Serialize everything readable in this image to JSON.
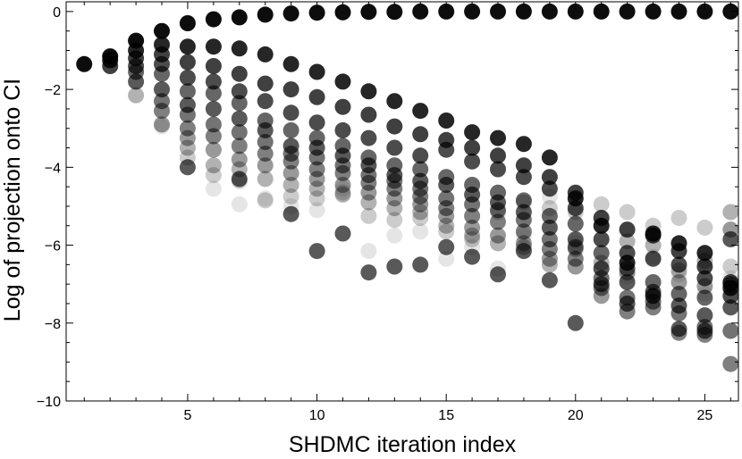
{
  "chart_data": {
    "type": "scatter",
    "title": "",
    "xlabel": "SHDMC iteration index",
    "ylabel": "Log of projection onto CI",
    "xlim": [
      0.3,
      26.3
    ],
    "ylim": [
      -10,
      0.25
    ],
    "x_ticks": [
      5,
      10,
      15,
      20,
      25
    ],
    "x_tick_labels": [
      "5",
      "10",
      "15",
      "20",
      "25"
    ],
    "y_ticks": [
      0,
      -2,
      -4,
      -6,
      -8,
      -10
    ],
    "y_tick_labels": [
      "0",
      "−2",
      "−4",
      "−6",
      "−8",
      "−10"
    ],
    "grid": false,
    "legend": "none",
    "marker_color": "#000000",
    "series": [
      {
        "name": "",
        "opacity": 0.95,
        "points": [
          [
            1,
            -1.35
          ],
          [
            2,
            -1.15
          ],
          [
            3,
            -0.75
          ],
          [
            4,
            -0.5
          ],
          [
            5,
            -0.3
          ],
          [
            6,
            -0.2
          ],
          [
            7,
            -0.15
          ],
          [
            8,
            -0.08
          ],
          [
            9,
            -0.05
          ],
          [
            10,
            -0.03
          ],
          [
            11,
            -0.02
          ],
          [
            12,
            -0.01
          ],
          [
            13,
            -0.01
          ],
          [
            14,
            0
          ],
          [
            15,
            0
          ],
          [
            16,
            0
          ],
          [
            17,
            0
          ],
          [
            18,
            0
          ],
          [
            19,
            0
          ],
          [
            20,
            0
          ],
          [
            21,
            0
          ],
          [
            22,
            0
          ],
          [
            23,
            0
          ],
          [
            24,
            0
          ],
          [
            25,
            0
          ],
          [
            26,
            0
          ]
        ]
      },
      {
        "name": "",
        "opacity": 0.85,
        "points": [
          [
            2,
            -1.25
          ],
          [
            3,
            -1.0
          ],
          [
            4,
            -0.85
          ],
          [
            5,
            -0.9
          ],
          [
            6,
            -0.9
          ],
          [
            7,
            -0.95
          ],
          [
            8,
            -1.1
          ],
          [
            9,
            -1.35
          ],
          [
            10,
            -1.55
          ],
          [
            11,
            -1.8
          ],
          [
            12,
            -2.05
          ],
          [
            13,
            -2.3
          ],
          [
            14,
            -2.55
          ],
          [
            15,
            -2.8
          ],
          [
            16,
            -3.1
          ],
          [
            17,
            -3.25
          ],
          [
            18,
            -3.4
          ],
          [
            19,
            -3.75
          ],
          [
            20,
            -4.8
          ],
          [
            21,
            -5.5
          ],
          [
            22,
            -6.45
          ],
          [
            23,
            -5.7
          ],
          [
            24,
            -5.95
          ],
          [
            25,
            -6.2
          ],
          [
            26,
            -7.1
          ]
        ]
      },
      {
        "name": "",
        "opacity": 0.75,
        "points": [
          [
            2,
            -1.4
          ],
          [
            3,
            -1.2
          ],
          [
            4,
            -1.1
          ],
          [
            5,
            -1.3
          ],
          [
            6,
            -1.4
          ],
          [
            7,
            -1.6
          ],
          [
            8,
            -1.85
          ],
          [
            9,
            -2.0
          ],
          [
            10,
            -2.2
          ],
          [
            11,
            -2.45
          ],
          [
            12,
            -2.65
          ],
          [
            13,
            -2.95
          ],
          [
            14,
            -3.15
          ],
          [
            15,
            -3.3
          ],
          [
            16,
            -3.5
          ],
          [
            17,
            -3.7
          ],
          [
            18,
            -3.95
          ],
          [
            19,
            -4.25
          ],
          [
            20,
            -4.65
          ],
          [
            21,
            -5.3
          ],
          [
            22,
            -5.6
          ],
          [
            23,
            -5.75
          ],
          [
            24,
            -6.15
          ],
          [
            25,
            -6.55
          ],
          [
            26,
            -6.95
          ]
        ]
      },
      {
        "name": "",
        "opacity": 0.7,
        "points": [
          [
            3,
            -1.4
          ],
          [
            4,
            -1.35
          ],
          [
            5,
            -1.7
          ],
          [
            6,
            -1.8
          ],
          [
            7,
            -2.05
          ],
          [
            8,
            -2.3
          ],
          [
            9,
            -2.6
          ],
          [
            10,
            -2.85
          ],
          [
            11,
            -3.05
          ],
          [
            12,
            -3.25
          ],
          [
            13,
            -3.5
          ],
          [
            14,
            -3.7
          ],
          [
            15,
            -3.55
          ],
          [
            16,
            -3.85
          ],
          [
            17,
            -4.05
          ],
          [
            18,
            -4.25
          ],
          [
            19,
            -4.55
          ],
          [
            20,
            -5.05
          ],
          [
            21,
            -5.85
          ],
          [
            22,
            -6.2
          ],
          [
            23,
            -6.35
          ],
          [
            24,
            -6.5
          ],
          [
            25,
            -6.85
          ],
          [
            26,
            -7.3
          ]
        ]
      },
      {
        "name": "",
        "opacity": 0.6,
        "points": [
          [
            3,
            -1.55
          ],
          [
            4,
            -1.6
          ],
          [
            5,
            -2.05
          ],
          [
            6,
            -2.1
          ],
          [
            7,
            -2.35
          ],
          [
            8,
            -2.8
          ],
          [
            9,
            -3.05
          ],
          [
            10,
            -3.25
          ],
          [
            11,
            -3.45
          ],
          [
            12,
            -3.75
          ],
          [
            13,
            -3.95
          ],
          [
            14,
            -4.05
          ],
          [
            15,
            -4.25
          ],
          [
            16,
            -4.45
          ],
          [
            17,
            -4.65
          ],
          [
            18,
            -4.85
          ],
          [
            19,
            -5.25
          ],
          [
            20,
            -5.45
          ],
          [
            21,
            -6.2
          ],
          [
            22,
            -6.6
          ],
          [
            23,
            -6.95
          ],
          [
            24,
            -7.25
          ],
          [
            25,
            -7.35
          ],
          [
            26,
            -7.0
          ]
        ]
      },
      {
        "name": "",
        "opacity": 0.65,
        "points": [
          [
            3,
            -1.8
          ],
          [
            4,
            -2.0
          ],
          [
            5,
            -2.4
          ],
          [
            6,
            -2.5
          ],
          [
            7,
            -2.75
          ],
          [
            8,
            -3.05
          ],
          [
            9,
            -3.45
          ],
          [
            10,
            -3.5
          ],
          [
            11,
            -3.7
          ],
          [
            12,
            -3.95
          ],
          [
            13,
            -4.2
          ],
          [
            14,
            -4.35
          ],
          [
            15,
            -4.45
          ],
          [
            16,
            -4.7
          ],
          [
            17,
            -4.9
          ],
          [
            18,
            -5.15
          ],
          [
            19,
            -5.55
          ],
          [
            20,
            -5.85
          ],
          [
            21,
            -6.6
          ],
          [
            22,
            -6.95
          ],
          [
            23,
            -7.2
          ],
          [
            24,
            -7.55
          ],
          [
            25,
            -7.8
          ],
          [
            26,
            -7.6
          ]
        ]
      },
      {
        "name": "",
        "opacity": 0.55,
        "points": [
          [
            4,
            -2.3
          ],
          [
            5,
            -2.65
          ],
          [
            6,
            -2.9
          ],
          [
            7,
            -3.1
          ],
          [
            8,
            -3.35
          ],
          [
            9,
            -3.65
          ],
          [
            10,
            -3.75
          ],
          [
            11,
            -3.95
          ],
          [
            12,
            -4.2
          ],
          [
            13,
            -4.35
          ],
          [
            14,
            -4.55
          ],
          [
            15,
            -4.8
          ],
          [
            16,
            -4.95
          ],
          [
            17,
            -5.1
          ],
          [
            18,
            -5.35
          ],
          [
            19,
            -5.85
          ],
          [
            20,
            -6.05
          ],
          [
            21,
            -6.85
          ],
          [
            22,
            -7.35
          ],
          [
            23,
            -7.45
          ],
          [
            24,
            -7.75
          ],
          [
            25,
            -8.1
          ],
          [
            26,
            -8.2
          ]
        ]
      },
      {
        "name": "",
        "opacity": 0.5,
        "points": [
          [
            4,
            -2.55
          ],
          [
            5,
            -3.0
          ],
          [
            6,
            -3.2
          ],
          [
            7,
            -3.45
          ],
          [
            8,
            -3.65
          ],
          [
            9,
            -3.85
          ],
          [
            10,
            -4.05
          ],
          [
            11,
            -4.15
          ],
          [
            12,
            -4.4
          ],
          [
            13,
            -4.55
          ],
          [
            14,
            -4.75
          ],
          [
            15,
            -5.05
          ],
          [
            16,
            -5.25
          ],
          [
            17,
            -5.4
          ],
          [
            18,
            -5.65
          ],
          [
            19,
            -6.1
          ],
          [
            20,
            -6.35
          ],
          [
            21,
            -7.1
          ],
          [
            22,
            -7.7
          ],
          [
            23,
            -7.6
          ],
          [
            24,
            -8.25
          ],
          [
            25,
            -8.3
          ],
          [
            26,
            -9.05
          ]
        ]
      },
      {
        "name": "",
        "opacity": 0.4,
        "points": [
          [
            4,
            -2.9
          ],
          [
            5,
            -3.25
          ],
          [
            6,
            -3.55
          ],
          [
            7,
            -3.8
          ],
          [
            8,
            -3.95
          ],
          [
            9,
            -4.15
          ],
          [
            10,
            -4.3
          ],
          [
            11,
            -4.45
          ],
          [
            12,
            -4.65
          ],
          [
            13,
            -4.8
          ],
          [
            14,
            -4.95
          ],
          [
            15,
            -5.25
          ],
          [
            16,
            -5.55
          ],
          [
            17,
            -5.75
          ],
          [
            18,
            -5.95
          ],
          [
            19,
            -6.35
          ],
          [
            20,
            -6.55
          ],
          [
            21,
            -7.3
          ],
          [
            22,
            -6.7
          ],
          [
            23,
            -7.3
          ],
          [
            24,
            -6.95
          ],
          [
            25,
            -7.05
          ],
          [
            26,
            -5.6
          ]
        ]
      },
      {
        "name": "",
        "opacity": 0.3,
        "points": [
          [
            3,
            -2.15
          ],
          [
            5,
            -3.5
          ],
          [
            6,
            -3.95
          ],
          [
            7,
            -4.05
          ],
          [
            8,
            -4.3
          ],
          [
            9,
            -4.45
          ],
          [
            10,
            -4.55
          ],
          [
            11,
            -4.7
          ],
          [
            12,
            -4.9
          ],
          [
            13,
            -5.05
          ],
          [
            14,
            -5.15
          ],
          [
            15,
            -5.5
          ],
          [
            16,
            -5.75
          ],
          [
            17,
            -5.95
          ],
          [
            18,
            -6.05
          ],
          [
            19,
            -6.5
          ],
          [
            20,
            -6.1
          ],
          [
            21,
            -6.45
          ],
          [
            22,
            -5.9
          ],
          [
            23,
            -6.0
          ],
          [
            24,
            -6.65
          ],
          [
            25,
            -6.4
          ],
          [
            26,
            -5.15
          ]
        ]
      },
      {
        "name": "",
        "opacity": 0.2,
        "points": [
          [
            5,
            -3.75
          ],
          [
            6,
            -4.2
          ],
          [
            7,
            -4.35
          ],
          [
            8,
            -4.85
          ],
          [
            9,
            -4.75
          ],
          [
            10,
            -4.8
          ],
          [
            11,
            -4.65
          ],
          [
            12,
            -5.25
          ],
          [
            13,
            -5.35
          ],
          [
            14,
            -5.3
          ],
          [
            15,
            -5.65
          ],
          [
            16,
            -5.85
          ],
          [
            17,
            -5.15
          ],
          [
            18,
            -4.9
          ],
          [
            19,
            -5.05
          ],
          [
            20,
            -5.15
          ],
          [
            21,
            -4.95
          ],
          [
            22,
            -5.15
          ],
          [
            23,
            -5.5
          ],
          [
            24,
            -5.3
          ],
          [
            25,
            -5.55
          ],
          [
            26,
            -6.55
          ]
        ]
      },
      {
        "name": "",
        "opacity": 0.1,
        "points": [
          [
            4,
            -2.95
          ],
          [
            6,
            -4.55
          ],
          [
            7,
            -4.95
          ],
          [
            8,
            -4.8
          ],
          [
            9,
            -5.0
          ],
          [
            10,
            -5.1
          ],
          [
            11,
            -4.55
          ],
          [
            12,
            -6.15
          ],
          [
            13,
            -5.75
          ],
          [
            14,
            -5.65
          ],
          [
            15,
            -6.35
          ],
          [
            16,
            -6.05
          ],
          [
            17,
            -6.6
          ],
          [
            18,
            -5.75
          ],
          [
            19,
            -4.75
          ],
          [
            20,
            -5.95
          ],
          [
            21,
            -6.6
          ],
          [
            22,
            -6.8
          ],
          [
            23,
            -6.3
          ],
          [
            24,
            -6.75
          ],
          [
            25,
            -7.25
          ],
          [
            26,
            -6.85
          ]
        ]
      },
      {
        "name": "",
        "opacity": 0.65,
        "points": [
          [
            5,
            -4.0
          ],
          [
            7,
            -4.3
          ],
          [
            9,
            -5.2
          ],
          [
            10,
            -6.15
          ],
          [
            11,
            -5.7
          ],
          [
            12,
            -6.7
          ],
          [
            13,
            -6.55
          ],
          [
            14,
            -6.5
          ],
          [
            15,
            -6.05
          ],
          [
            16,
            -6.3
          ],
          [
            17,
            -6.75
          ],
          [
            18,
            -6.15
          ],
          [
            19,
            -6.9
          ],
          [
            20,
            -8.0
          ],
          [
            21,
            -7.0
          ],
          [
            22,
            -7.5
          ],
          [
            23,
            -7.3
          ],
          [
            24,
            -8.15
          ],
          [
            25,
            -8.2
          ],
          [
            26,
            -5.85
          ]
        ]
      }
    ]
  }
}
